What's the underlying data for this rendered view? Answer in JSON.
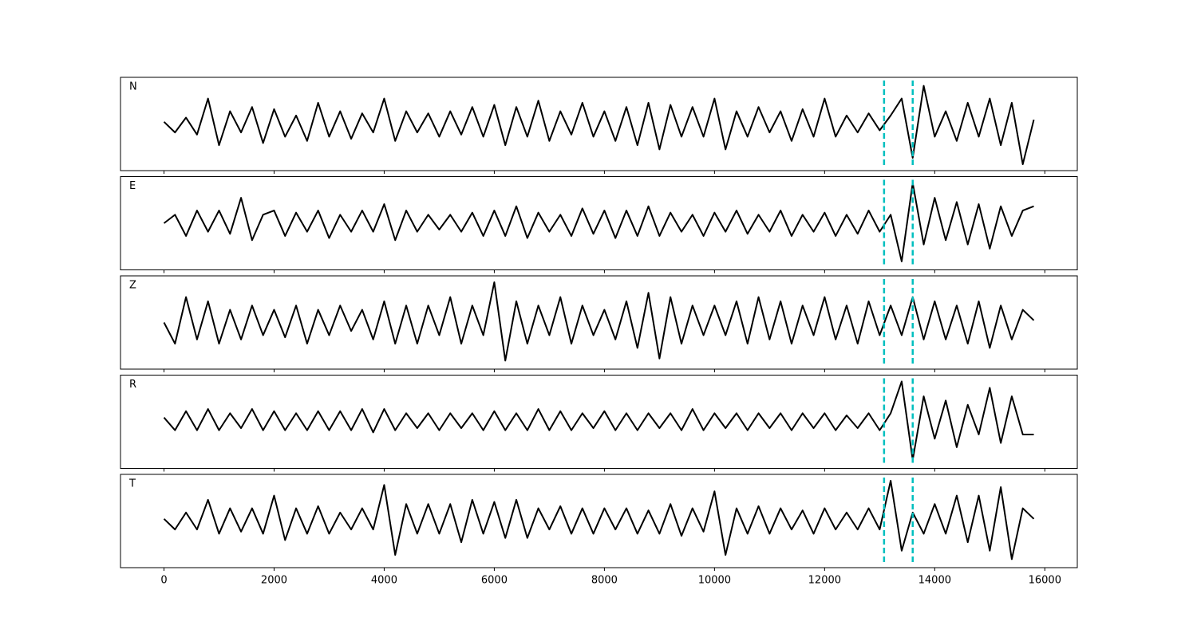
{
  "chart_data": {
    "type": "line",
    "color": "#000000",
    "x": [
      0,
      200,
      400,
      600,
      800,
      1000,
      1200,
      1400,
      1600,
      1800,
      2000,
      2200,
      2400,
      2600,
      2800,
      3000,
      3200,
      3400,
      3600,
      3800,
      4000,
      4200,
      4400,
      4600,
      4800,
      5000,
      5200,
      5400,
      5600,
      5800,
      6000,
      6200,
      6400,
      6600,
      6800,
      7000,
      7200,
      7400,
      7600,
      7800,
      8000,
      8200,
      8400,
      8600,
      8800,
      9000,
      9200,
      9400,
      9600,
      9800,
      10000,
      10200,
      10400,
      10600,
      10800,
      11000,
      11200,
      11400,
      11600,
      11800,
      12000,
      12200,
      12400,
      12600,
      12800,
      13000,
      13200,
      13400,
      13600,
      13800,
      14000,
      14200,
      14400,
      14600,
      14800,
      15000,
      15200,
      15400,
      15600,
      15800
    ],
    "xlim": [
      -790,
      16590
    ],
    "xticks": [
      0,
      2000,
      4000,
      6000,
      8000,
      10000,
      12000,
      14000,
      16000
    ],
    "ylim": [
      -1.1,
      1.1
    ],
    "vlines": [
      13080,
      13600
    ],
    "vline_color": "#00bfbf",
    "panels": [
      {
        "name": "N",
        "values": [
          0.05,
          -0.2,
          0.15,
          -0.25,
          0.6,
          -0.5,
          0.3,
          -0.2,
          0.4,
          -0.45,
          0.35,
          -0.3,
          0.2,
          -0.4,
          0.5,
          -0.3,
          0.3,
          -0.35,
          0.25,
          -0.2,
          0.6,
          -0.4,
          0.3,
          -0.2,
          0.25,
          -0.3,
          0.3,
          -0.25,
          0.4,
          -0.3,
          0.45,
          -0.5,
          0.4,
          -0.3,
          0.55,
          -0.4,
          0.3,
          -0.25,
          0.5,
          -0.3,
          0.3,
          -0.4,
          0.4,
          -0.5,
          0.5,
          -0.6,
          0.45,
          -0.3,
          0.4,
          -0.3,
          0.6,
          -0.6,
          0.3,
          -0.3,
          0.4,
          -0.2,
          0.3,
          -0.4,
          0.35,
          -0.3,
          0.6,
          -0.3,
          0.2,
          -0.2,
          0.25,
          -0.15,
          0.2,
          0.6,
          -0.8,
          0.9,
          -0.3,
          0.3,
          -0.4,
          0.5,
          -0.3,
          0.6,
          -0.5,
          0.5,
          -0.95,
          0.1
        ]
      },
      {
        "name": "E",
        "values": [
          0,
          0.2,
          -0.3,
          0.3,
          -0.2,
          0.3,
          -0.25,
          0.6,
          -0.4,
          0.2,
          0.3,
          -0.3,
          0.25,
          -0.2,
          0.3,
          -0.35,
          0.2,
          -0.2,
          0.3,
          -0.2,
          0.45,
          -0.4,
          0.3,
          -0.2,
          0.2,
          -0.15,
          0.2,
          -0.2,
          0.25,
          -0.3,
          0.3,
          -0.3,
          0.4,
          -0.35,
          0.25,
          -0.2,
          0.2,
          -0.3,
          0.35,
          -0.25,
          0.3,
          -0.35,
          0.3,
          -0.3,
          0.4,
          -0.3,
          0.25,
          -0.2,
          0.2,
          -0.3,
          0.25,
          -0.2,
          0.3,
          -0.25,
          0.2,
          -0.2,
          0.3,
          -0.3,
          0.2,
          -0.2,
          0.25,
          -0.3,
          0.2,
          -0.25,
          0.3,
          -0.2,
          0.2,
          -0.9,
          0.95,
          -0.5,
          0.6,
          -0.4,
          0.5,
          -0.5,
          0.45,
          -0.6,
          0.4,
          -0.3,
          0.3,
          0.4
        ]
      },
      {
        "name": "Z",
        "values": [
          0,
          -0.5,
          0.6,
          -0.4,
          0.5,
          -0.5,
          0.3,
          -0.4,
          0.4,
          -0.3,
          0.3,
          -0.35,
          0.4,
          -0.5,
          0.3,
          -0.3,
          0.4,
          -0.2,
          0.3,
          -0.4,
          0.5,
          -0.5,
          0.4,
          -0.5,
          0.4,
          -0.3,
          0.6,
          -0.5,
          0.4,
          -0.3,
          0.95,
          -0.9,
          0.5,
          -0.5,
          0.4,
          -0.3,
          0.6,
          -0.5,
          0.4,
          -0.3,
          0.3,
          -0.4,
          0.5,
          -0.6,
          0.7,
          -0.85,
          0.6,
          -0.5,
          0.4,
          -0.3,
          0.4,
          -0.3,
          0.5,
          -0.5,
          0.6,
          -0.4,
          0.5,
          -0.5,
          0.4,
          -0.3,
          0.6,
          -0.4,
          0.4,
          -0.5,
          0.5,
          -0.3,
          0.4,
          -0.3,
          0.6,
          -0.4,
          0.5,
          -0.4,
          0.4,
          -0.5,
          0.5,
          -0.6,
          0.4,
          -0.4,
          0.3,
          0.05
        ]
      },
      {
        "name": "R",
        "values": [
          0.1,
          -0.2,
          0.25,
          -0.2,
          0.3,
          -0.2,
          0.2,
          -0.15,
          0.3,
          -0.2,
          0.25,
          -0.2,
          0.2,
          -0.2,
          0.25,
          -0.2,
          0.25,
          -0.2,
          0.3,
          -0.25,
          0.3,
          -0.2,
          0.2,
          -0.15,
          0.2,
          -0.2,
          0.2,
          -0.15,
          0.2,
          -0.2,
          0.25,
          -0.2,
          0.2,
          -0.2,
          0.3,
          -0.2,
          0.25,
          -0.2,
          0.2,
          -0.15,
          0.25,
          -0.2,
          0.2,
          -0.2,
          0.2,
          -0.15,
          0.2,
          -0.2,
          0.3,
          -0.2,
          0.2,
          -0.15,
          0.2,
          -0.2,
          0.2,
          -0.15,
          0.2,
          -0.2,
          0.2,
          -0.15,
          0.2,
          -0.2,
          0.15,
          -0.15,
          0.2,
          -0.2,
          0.2,
          0.95,
          -0.9,
          0.6,
          -0.4,
          0.5,
          -0.6,
          0.4,
          -0.3,
          0.8,
          -0.5,
          0.6,
          -0.3,
          -0.3
        ]
      },
      {
        "name": "T",
        "values": [
          0.05,
          -0.2,
          0.2,
          -0.2,
          0.5,
          -0.3,
          0.3,
          -0.25,
          0.3,
          -0.3,
          0.6,
          -0.45,
          0.3,
          -0.3,
          0.35,
          -0.3,
          0.2,
          -0.2,
          0.3,
          -0.2,
          0.85,
          -0.8,
          0.4,
          -0.3,
          0.4,
          -0.3,
          0.4,
          -0.5,
          0.5,
          -0.3,
          0.45,
          -0.4,
          0.5,
          -0.4,
          0.3,
          -0.2,
          0.35,
          -0.3,
          0.3,
          -0.3,
          0.3,
          -0.2,
          0.3,
          -0.3,
          0.25,
          -0.3,
          0.4,
          -0.35,
          0.3,
          -0.25,
          0.7,
          -0.8,
          0.3,
          -0.3,
          0.35,
          -0.3,
          0.3,
          -0.2,
          0.25,
          -0.3,
          0.3,
          -0.2,
          0.2,
          -0.2,
          0.3,
          -0.2,
          0.95,
          -0.7,
          0.2,
          -0.3,
          0.4,
          -0.3,
          0.6,
          -0.5,
          0.6,
          -0.7,
          0.8,
          -0.9,
          0.3,
          0.05
        ]
      }
    ]
  }
}
